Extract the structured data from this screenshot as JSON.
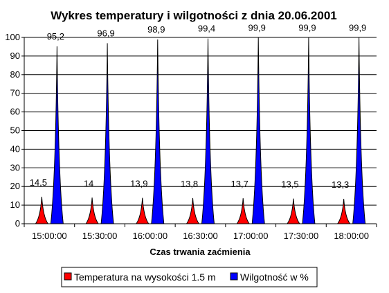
{
  "chart_data": {
    "type": "bar",
    "title": "Wykres temperatury i wilgotności z dnia 20.06.2001",
    "xlabel": "Czas trwania zaćmienia",
    "ylabel": "",
    "ylim": [
      0,
      100
    ],
    "yticks": [
      0,
      10,
      20,
      30,
      40,
      50,
      60,
      70,
      80,
      90,
      100
    ],
    "ytick_labels": [
      "0",
      "10",
      "20",
      "30",
      "40",
      "50",
      "60",
      "70",
      "80",
      "90",
      "100"
    ],
    "grid": true,
    "legend_position": "bottom",
    "categories": [
      "15:00:00",
      "15:30:00",
      "16:00:00",
      "16:30:00",
      "17:00:00",
      "17:30:00",
      "18:00:00"
    ],
    "series": [
      {
        "name": "Temperatura na wysokości 1.5 m",
        "color": "#ff0000",
        "values": [
          14.5,
          14,
          13.9,
          13.8,
          13.7,
          13.5,
          13.3
        ],
        "labels": [
          "14,5",
          "14",
          "13,9",
          "13,8",
          "13,7",
          "13,5",
          "13,3"
        ]
      },
      {
        "name": "Wilgotność w %",
        "color": "#0000ff",
        "values": [
          95.2,
          96.9,
          98.9,
          99.4,
          99.9,
          99.9,
          99.9
        ],
        "labels": [
          "95,2",
          "96,9",
          "98,9",
          "99,4",
          "99,9",
          "99,9",
          "99,9"
        ]
      }
    ]
  }
}
